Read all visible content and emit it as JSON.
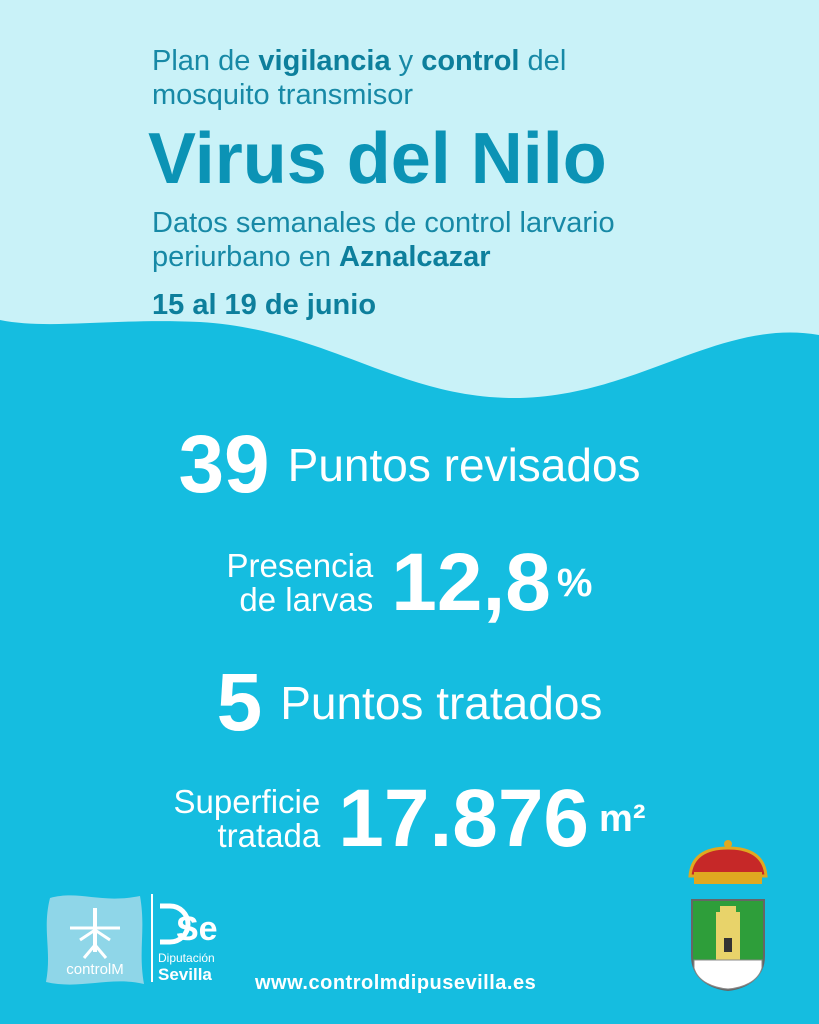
{
  "header": {
    "intro_parts": [
      "Plan de ",
      "vigilancia",
      " y ",
      "control",
      " del"
    ],
    "intro_line2": "mosquito transmisor",
    "title": "Virus del Nilo",
    "subtitle_line1": "Datos semanales de control larvario",
    "subtitle_line2": "periurbano en ",
    "town": "Aznalcazar",
    "dates": "15 al 19 de junio"
  },
  "stats": [
    {
      "number": "39",
      "label": "Puntos revisados"
    },
    {
      "label_line1": "Presencia",
      "label_line2": "de larvas",
      "number": "12,8",
      "unit": "%"
    },
    {
      "number": "5",
      "label": "Puntos tratados"
    },
    {
      "label_line1": "Superficie",
      "label_line2": "tratada",
      "number": "17.876",
      "unit": "m²"
    }
  ],
  "footer": {
    "logo_controlm": "controlM",
    "logo_dipu_mark": "Se",
    "logo_dipu_line1": "Diputación",
    "logo_dipu_line2": "Sevilla",
    "url": "www.controlmdipusevilla.es"
  }
}
